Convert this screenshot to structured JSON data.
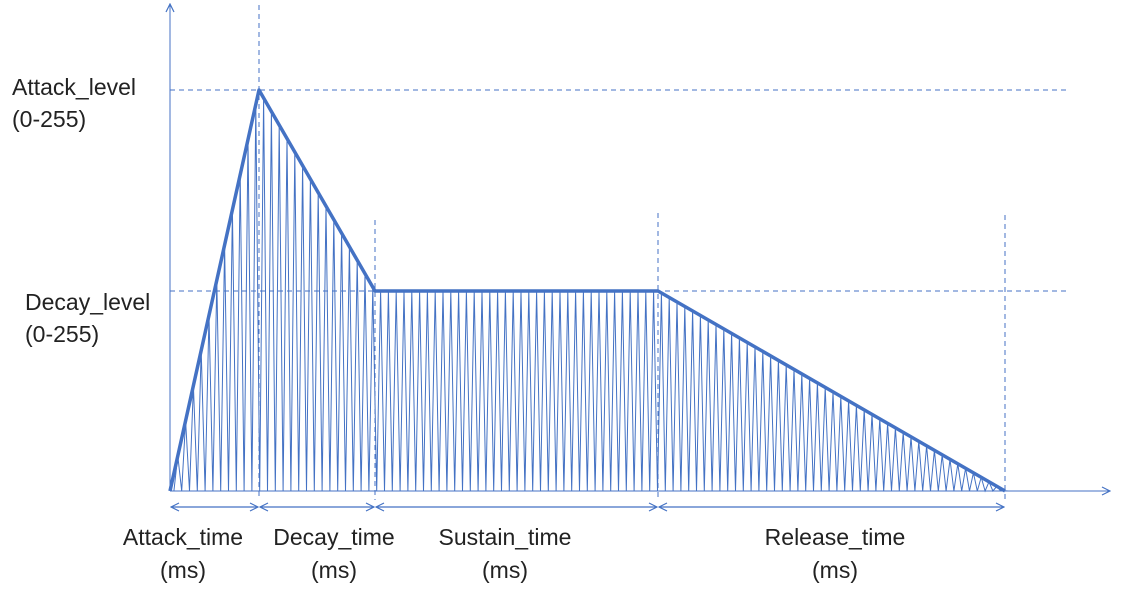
{
  "y_labels": [
    {
      "label": "Attack_level",
      "range": "(0-255)"
    },
    {
      "label": "Decay_level",
      "range": "(0-255)"
    }
  ],
  "x_labels": [
    {
      "label": "Attack_time",
      "unit": "(ms)"
    },
    {
      "label": "Decay_time",
      "unit": "(ms)"
    },
    {
      "label": "Sustain_time",
      "unit": "(ms)"
    },
    {
      "label": "Release_time",
      "unit": "(ms)"
    }
  ]
}
